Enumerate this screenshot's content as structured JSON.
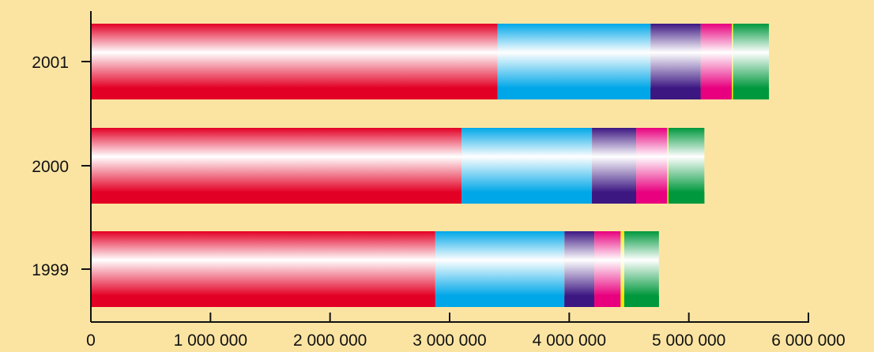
{
  "chart_data": {
    "type": "bar",
    "orientation": "horizontal",
    "stacked": true,
    "categories": [
      "1999",
      "2000",
      "2001"
    ],
    "series": [
      {
        "values": [
          2880000,
          3100000,
          3400000
        ],
        "color": "#e30025"
      },
      {
        "values": [
          1080000,
          1090000,
          1280000
        ],
        "color": "#00a7e8"
      },
      {
        "values": [
          250000,
          370000,
          420000
        ],
        "color": "#3c1782"
      },
      {
        "values": [
          220000,
          260000,
          260000
        ],
        "color": "#e8007e"
      },
      {
        "values": [
          30000,
          10000,
          10000
        ],
        "color": "#f2ea00"
      },
      {
        "values": [
          290000,
          300000,
          300000
        ],
        "color": "#00983d"
      }
    ],
    "xlim": [
      0,
      6000000
    ],
    "xticks": [
      0,
      1000000,
      2000000,
      3000000,
      4000000,
      5000000,
      6000000
    ],
    "xtick_labels": [
      "0",
      "1 000 000",
      "2 000 000",
      "3 000 000",
      "4 000 000",
      "5 000 000",
      "6 000 000"
    ],
    "grid": false,
    "legend": "none",
    "background_color": "#fbe4a2",
    "title": "",
    "xlabel": "",
    "ylabel": ""
  }
}
